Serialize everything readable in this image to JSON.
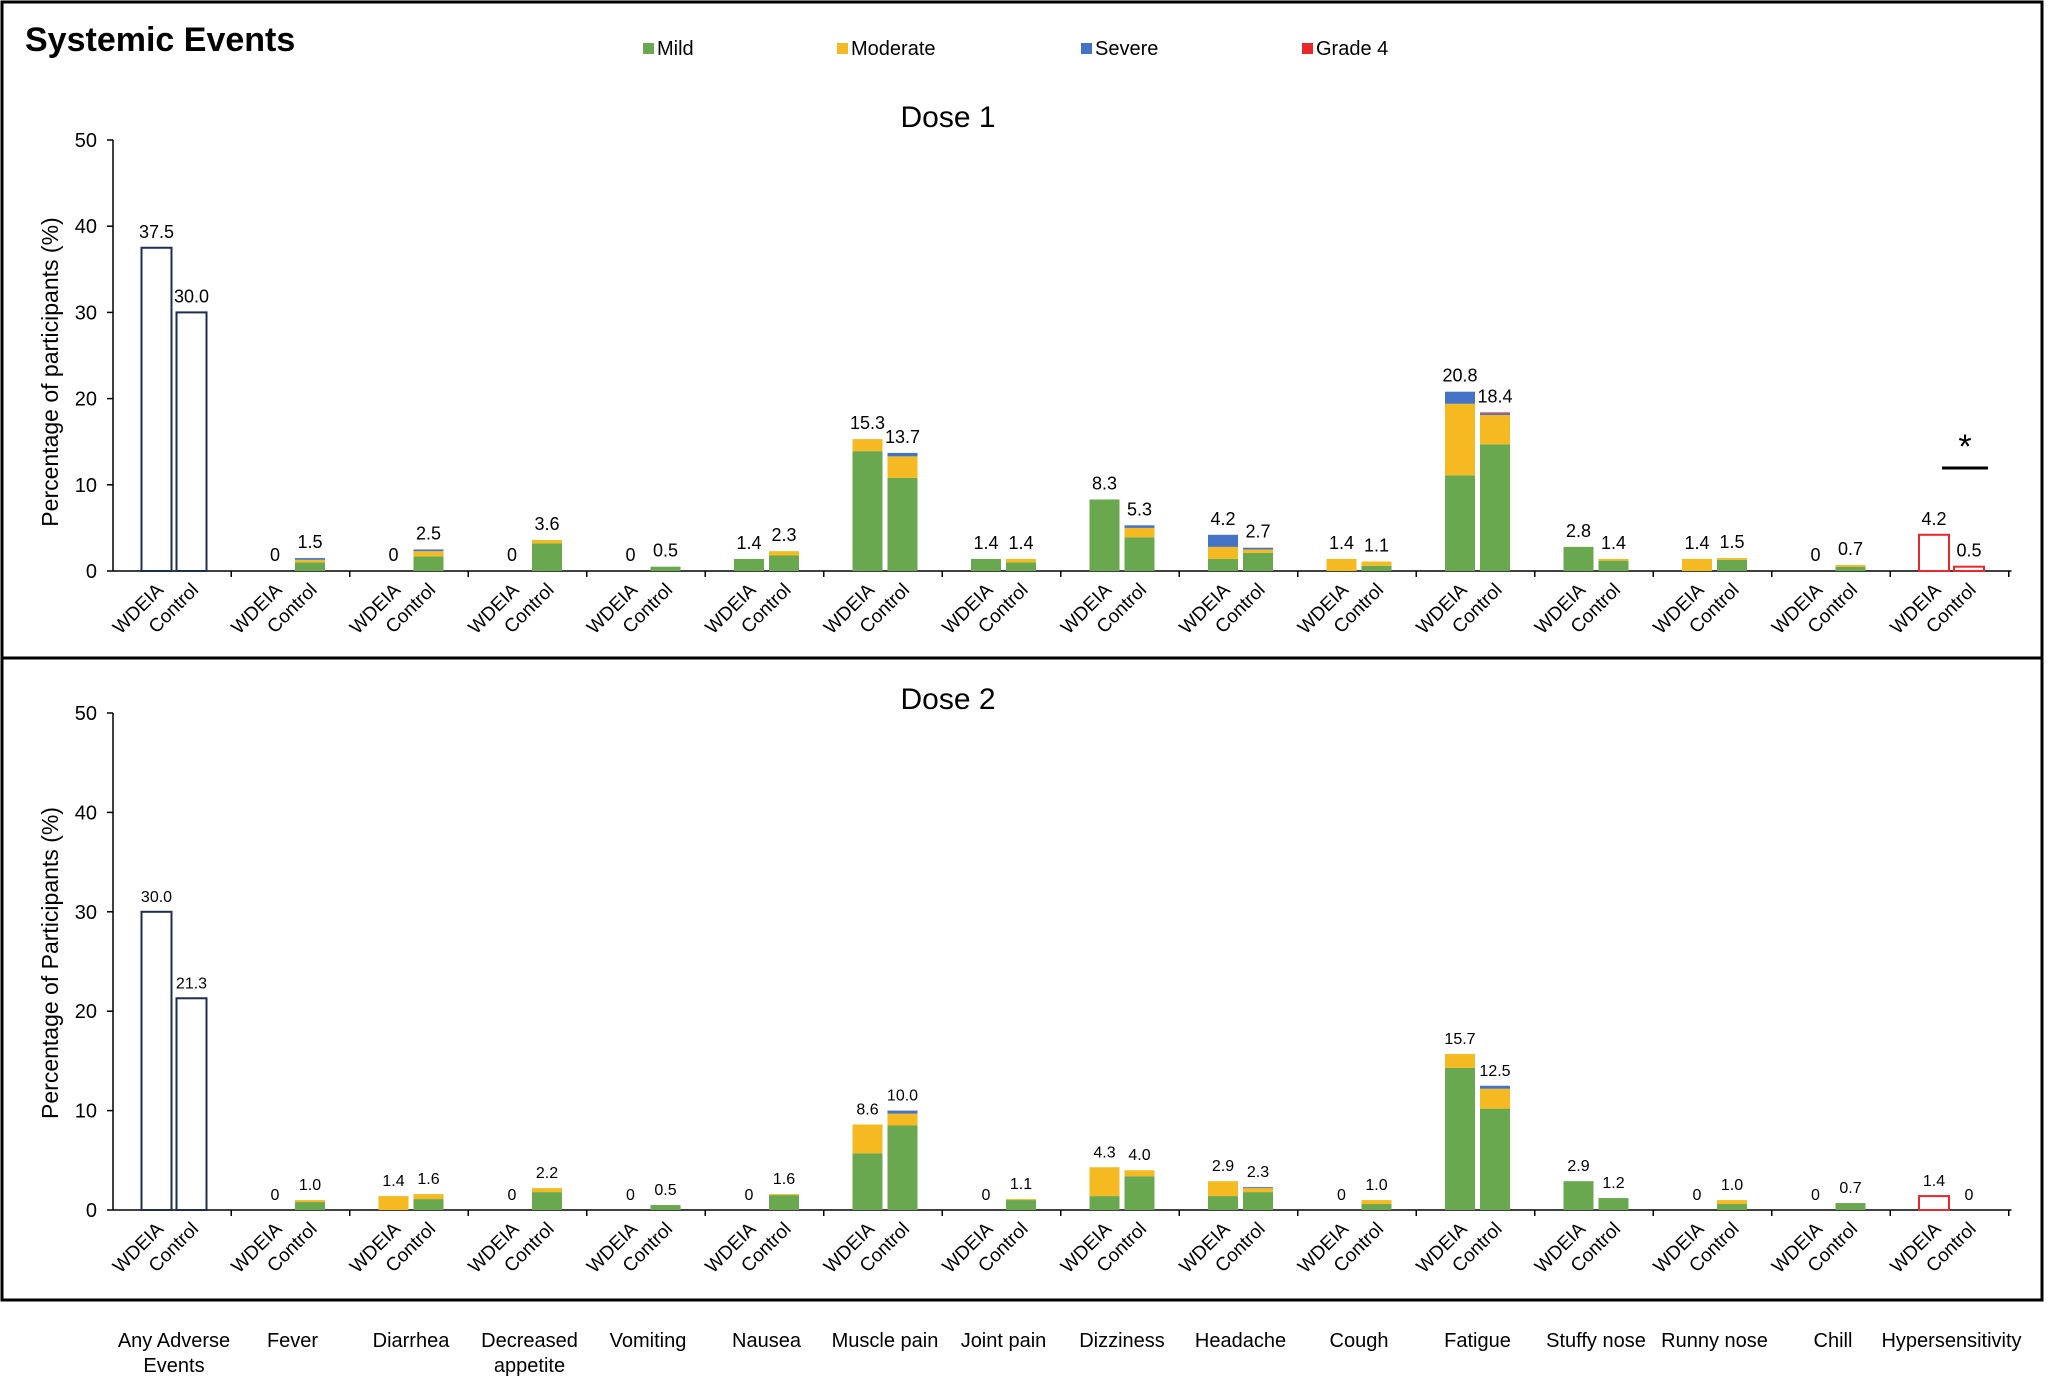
{
  "figure_title": "Systemic Events",
  "legend": [
    {
      "label": "Mild",
      "color": "#6aa84f"
    },
    {
      "label": "Moderate",
      "color": "#f5b921"
    },
    {
      "label": "Severe",
      "color": "#4472c4"
    },
    {
      "label": "Grade 4",
      "color": "#e8282b"
    }
  ],
  "colors": {
    "mild": "#6aa84f",
    "moderate": "#f5b921",
    "severe": "#4472c4",
    "grade4": "#e8282b",
    "outline_any": "#1f2d4e",
    "outline_hyper": "#e8282b"
  },
  "bar_labels": [
    "WDEIA",
    "Control"
  ],
  "categories": [
    "Any Adverse Events",
    "Fever",
    "Diarrhea",
    "Decreased appetite",
    "Vomiting",
    "Nausea",
    "Muscle pain",
    "Joint pain",
    "Dizziness",
    "Headache",
    "Cough",
    "Fatigue",
    "Stuffy nose",
    "Runny nose",
    "Chill",
    "Hypersensitivity"
  ],
  "chart_data": [
    {
      "type": "bar",
      "stacked": true,
      "title": "Dose 1",
      "ylabel": "Percentage of participants  (%)",
      "ylim": [
        0,
        50
      ],
      "yticks": [
        0,
        10,
        20,
        30,
        40,
        50
      ],
      "groups": [
        "WDEIA",
        "Control"
      ],
      "significance_marker": {
        "category": "Hypersensitivity",
        "symbol": "*"
      },
      "bars": [
        [
          {
            "total": 37.5,
            "label": "37.5",
            "outline": true,
            "mild": 0,
            "moderate": 0,
            "severe": 0,
            "grade4": 0
          },
          {
            "total": 30.0,
            "label": "30.0",
            "outline": true,
            "mild": 0,
            "moderate": 0,
            "severe": 0,
            "grade4": 0
          }
        ],
        [
          {
            "total": 0,
            "label": "0",
            "mild": 0,
            "moderate": 0,
            "severe": 0,
            "grade4": 0
          },
          {
            "total": 1.5,
            "label": "1.5",
            "mild": 1.0,
            "moderate": 0.3,
            "severe": 0.2,
            "grade4": 0
          }
        ],
        [
          {
            "total": 0,
            "label": "0",
            "mild": 0,
            "moderate": 0,
            "severe": 0,
            "grade4": 0
          },
          {
            "total": 2.5,
            "label": "2.5",
            "mild": 1.7,
            "moderate": 0.6,
            "severe": 0.2,
            "grade4": 0
          }
        ],
        [
          {
            "total": 0,
            "label": "0",
            "mild": 0,
            "moderate": 0,
            "severe": 0,
            "grade4": 0
          },
          {
            "total": 3.6,
            "label": "3.6",
            "mild": 3.2,
            "moderate": 0.4,
            "severe": 0,
            "grade4": 0
          }
        ],
        [
          {
            "total": 0,
            "label": "0",
            "mild": 0,
            "moderate": 0,
            "severe": 0,
            "grade4": 0
          },
          {
            "total": 0.5,
            "label": "0.5",
            "mild": 0.5,
            "moderate": 0,
            "severe": 0,
            "grade4": 0
          }
        ],
        [
          {
            "total": 1.4,
            "label": "1.4",
            "mild": 1.4,
            "moderate": 0,
            "severe": 0,
            "grade4": 0
          },
          {
            "total": 2.3,
            "label": "2.3",
            "mild": 1.8,
            "moderate": 0.5,
            "severe": 0,
            "grade4": 0
          }
        ],
        [
          {
            "total": 15.3,
            "label": "15.3",
            "mild": 13.9,
            "moderate": 1.4,
            "severe": 0,
            "grade4": 0
          },
          {
            "total": 13.7,
            "label": "13.7",
            "mild": 10.8,
            "moderate": 2.5,
            "severe": 0.4,
            "grade4": 0
          }
        ],
        [
          {
            "total": 1.4,
            "label": "1.4",
            "mild": 1.4,
            "moderate": 0,
            "severe": 0,
            "grade4": 0
          },
          {
            "total": 1.4,
            "label": "1.4",
            "mild": 1.0,
            "moderate": 0.4,
            "severe": 0,
            "grade4": 0
          }
        ],
        [
          {
            "total": 8.3,
            "label": "8.3",
            "mild": 8.3,
            "moderate": 0,
            "severe": 0,
            "grade4": 0
          },
          {
            "total": 5.3,
            "label": "5.3",
            "mild": 3.9,
            "moderate": 1.1,
            "severe": 0.3,
            "grade4": 0
          }
        ],
        [
          {
            "total": 4.2,
            "label": "4.2",
            "mild": 1.4,
            "moderate": 1.4,
            "severe": 1.4,
            "grade4": 0
          },
          {
            "total": 2.7,
            "label": "2.7",
            "mild": 2.1,
            "moderate": 0.4,
            "severe": 0.2,
            "grade4": 0
          }
        ],
        [
          {
            "total": 1.4,
            "label": "1.4",
            "mild": 0,
            "moderate": 1.4,
            "severe": 0,
            "grade4": 0
          },
          {
            "total": 1.1,
            "label": "1.1",
            "mild": 0.6,
            "moderate": 0.5,
            "severe": 0,
            "grade4": 0
          }
        ],
        [
          {
            "total": 20.8,
            "label": "20.8",
            "mild": 11.1,
            "moderate": 8.3,
            "severe": 1.4,
            "grade4": 0
          },
          {
            "total": 18.4,
            "label": "18.4",
            "mild": 14.7,
            "moderate": 3.4,
            "severe": 0.2,
            "grade4": 0.1
          }
        ],
        [
          {
            "total": 2.8,
            "label": "2.8",
            "mild": 2.8,
            "moderate": 0,
            "severe": 0,
            "grade4": 0
          },
          {
            "total": 1.4,
            "label": "1.4",
            "mild": 1.2,
            "moderate": 0.2,
            "severe": 0,
            "grade4": 0
          }
        ],
        [
          {
            "total": 1.4,
            "label": "1.4",
            "mild": 0,
            "moderate": 1.4,
            "severe": 0,
            "grade4": 0
          },
          {
            "total": 1.5,
            "label": "1.5",
            "mild": 1.3,
            "moderate": 0.2,
            "severe": 0,
            "grade4": 0
          }
        ],
        [
          {
            "total": 0,
            "label": "0",
            "mild": 0,
            "moderate": 0,
            "severe": 0,
            "grade4": 0
          },
          {
            "total": 0.7,
            "label": "0.7",
            "mild": 0.5,
            "moderate": 0.2,
            "severe": 0,
            "grade4": 0
          }
        ],
        [
          {
            "total": 4.2,
            "label": "4.2",
            "outline_red": true,
            "mild": 0,
            "moderate": 0,
            "severe": 0,
            "grade4": 0
          },
          {
            "total": 0.5,
            "label": "0.5",
            "outline_red": true,
            "mild": 0,
            "moderate": 0,
            "severe": 0,
            "grade4": 0
          }
        ]
      ]
    },
    {
      "type": "bar",
      "stacked": true,
      "title": "Dose 2",
      "ylabel": "Percentage of Participants  (%)",
      "ylim": [
        0,
        50
      ],
      "yticks": [
        0,
        10,
        20,
        30,
        40,
        50
      ],
      "groups": [
        "WDEIA",
        "Control"
      ],
      "bars": [
        [
          {
            "total": 30.0,
            "label": "30.0",
            "outline": true,
            "mild": 0,
            "moderate": 0,
            "severe": 0,
            "grade4": 0
          },
          {
            "total": 21.3,
            "label": "21.3",
            "outline": true,
            "mild": 0,
            "moderate": 0,
            "severe": 0,
            "grade4": 0
          }
        ],
        [
          {
            "total": 0,
            "label": "0",
            "mild": 0,
            "moderate": 0,
            "severe": 0,
            "grade4": 0
          },
          {
            "total": 1.0,
            "label": "1.0",
            "mild": 0.8,
            "moderate": 0.2,
            "severe": 0,
            "grade4": 0
          }
        ],
        [
          {
            "total": 1.4,
            "label": "1.4",
            "mild": 0,
            "moderate": 1.4,
            "severe": 0,
            "grade4": 0
          },
          {
            "total": 1.6,
            "label": "1.6",
            "mild": 1.1,
            "moderate": 0.5,
            "severe": 0,
            "grade4": 0
          }
        ],
        [
          {
            "total": 0,
            "label": "0",
            "mild": 0,
            "moderate": 0,
            "severe": 0,
            "grade4": 0
          },
          {
            "total": 2.2,
            "label": "2.2",
            "mild": 1.8,
            "moderate": 0.4,
            "severe": 0,
            "grade4": 0
          }
        ],
        [
          {
            "total": 0,
            "label": "0",
            "mild": 0,
            "moderate": 0,
            "severe": 0,
            "grade4": 0
          },
          {
            "total": 0.5,
            "label": "0.5",
            "mild": 0.5,
            "moderate": 0,
            "severe": 0,
            "grade4": 0
          }
        ],
        [
          {
            "total": 0,
            "label": "0",
            "mild": 0,
            "moderate": 0,
            "severe": 0,
            "grade4": 0
          },
          {
            "total": 1.6,
            "label": "1.6",
            "mild": 1.5,
            "moderate": 0.1,
            "severe": 0,
            "grade4": 0
          }
        ],
        [
          {
            "total": 8.6,
            "label": "8.6",
            "mild": 5.7,
            "moderate": 2.9,
            "severe": 0,
            "grade4": 0
          },
          {
            "total": 10.0,
            "label": "10.0",
            "mild": 8.5,
            "moderate": 1.2,
            "severe": 0.3,
            "grade4": 0
          }
        ],
        [
          {
            "total": 0,
            "label": "0",
            "mild": 0,
            "moderate": 0,
            "severe": 0,
            "grade4": 0
          },
          {
            "total": 1.1,
            "label": "1.1",
            "mild": 1.0,
            "moderate": 0.1,
            "severe": 0,
            "grade4": 0
          }
        ],
        [
          {
            "total": 4.3,
            "label": "4.3",
            "mild": 1.4,
            "moderate": 2.9,
            "severe": 0,
            "grade4": 0
          },
          {
            "total": 4.0,
            "label": "4.0",
            "mild": 3.4,
            "moderate": 0.6,
            "severe": 0,
            "grade4": 0
          }
        ],
        [
          {
            "total": 2.9,
            "label": "2.9",
            "mild": 1.4,
            "moderate": 1.5,
            "severe": 0,
            "grade4": 0
          },
          {
            "total": 2.3,
            "label": "2.3",
            "mild": 1.8,
            "moderate": 0.4,
            "severe": 0.1,
            "grade4": 0
          }
        ],
        [
          {
            "total": 0,
            "label": "0",
            "mild": 0,
            "moderate": 0,
            "severe": 0,
            "grade4": 0
          },
          {
            "total": 1.0,
            "label": "1.0",
            "mild": 0.6,
            "moderate": 0.4,
            "severe": 0,
            "grade4": 0
          }
        ],
        [
          {
            "total": 15.7,
            "label": "15.7",
            "mild": 14.3,
            "moderate": 1.4,
            "severe": 0,
            "grade4": 0
          },
          {
            "total": 12.5,
            "label": "12.5",
            "mild": 10.2,
            "moderate": 2.0,
            "severe": 0.3,
            "grade4": 0
          }
        ],
        [
          {
            "total": 2.9,
            "label": "2.9",
            "mild": 2.9,
            "moderate": 0,
            "severe": 0,
            "grade4": 0
          },
          {
            "total": 1.2,
            "label": "1.2",
            "mild": 1.2,
            "moderate": 0,
            "severe": 0,
            "grade4": 0
          }
        ],
        [
          {
            "total": 0,
            "label": "0",
            "mild": 0,
            "moderate": 0,
            "severe": 0,
            "grade4": 0
          },
          {
            "total": 1.0,
            "label": "1.0",
            "mild": 0.6,
            "moderate": 0.4,
            "severe": 0,
            "grade4": 0
          }
        ],
        [
          {
            "total": 0,
            "label": "0",
            "mild": 0,
            "moderate": 0,
            "severe": 0,
            "grade4": 0
          },
          {
            "total": 0.7,
            "label": "0.7",
            "mild": 0.7,
            "moderate": 0,
            "severe": 0,
            "grade4": 0
          }
        ],
        [
          {
            "total": 1.4,
            "label": "1.4",
            "outline_red": true,
            "mild": 0,
            "moderate": 0,
            "severe": 0,
            "grade4": 0
          },
          {
            "total": 0,
            "label": "0",
            "outline_red": true,
            "mild": 0,
            "moderate": 0,
            "severe": 0,
            "grade4": 0
          }
        ]
      ]
    }
  ]
}
